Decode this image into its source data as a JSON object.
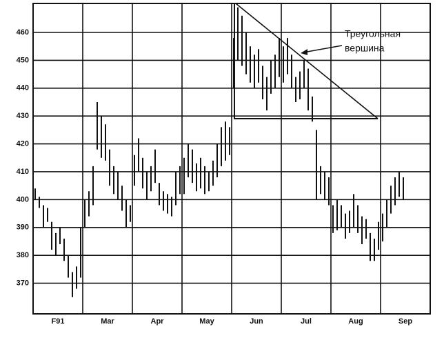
{
  "chart_data": {
    "type": "ohlc",
    "annotation": [
      "Треугольная",
      "вершина"
    ],
    "ylim": [
      359,
      470.4
    ],
    "yticks": [
      370,
      380,
      390,
      400,
      410,
      420,
      430,
      440,
      450,
      460
    ],
    "grid": true,
    "color": "#111111",
    "months": [
      {
        "name": "F91",
        "high": [
          404,
          401,
          398,
          397,
          392,
          388,
          390,
          386,
          380,
          374,
          376,
          390
        ],
        "low": [
          400,
          397,
          390,
          392,
          382,
          380,
          384,
          378,
          372,
          365,
          368,
          372
        ]
      },
      {
        "name": "Mar",
        "high": [
          400,
          403,
          412,
          435,
          430,
          427,
          418,
          412,
          410,
          405,
          400,
          398
        ],
        "low": [
          390,
          394,
          398,
          418,
          415,
          414,
          405,
          402,
          400,
          396,
          390,
          392
        ]
      },
      {
        "name": "Apr",
        "high": [
          416,
          422,
          415,
          410,
          412,
          418,
          406,
          403,
          402,
          401,
          410,
          412
        ],
        "low": [
          405,
          410,
          404,
          400,
          403,
          406,
          398,
          396,
          395,
          394,
          398,
          402
        ]
      },
      {
        "name": "May",
        "high": [
          415,
          420,
          418,
          413,
          415,
          412,
          410,
          414,
          420,
          426,
          428,
          426
        ],
        "low": [
          402,
          408,
          406,
          403,
          404,
          402,
          403,
          405,
          408,
          412,
          414,
          416
        ]
      },
      {
        "name": "Jun",
        "high": [
          458,
          469,
          466,
          460,
          455,
          452,
          454,
          448,
          444,
          450,
          452,
          458
        ],
        "low": [
          440,
          450,
          448,
          445,
          442,
          440,
          442,
          436,
          432,
          438,
          440,
          444
        ]
      },
      {
        "name": "Jul",
        "high": [
          455,
          458,
          452,
          444,
          446,
          450,
          447,
          437,
          425,
          412,
          410,
          408
        ],
        "low": [
          442,
          445,
          440,
          435,
          436,
          440,
          432,
          428,
          400,
          402,
          400,
          398
        ]
      },
      {
        "name": "Aug",
        "high": [
          398,
          400,
          398,
          395,
          396,
          402,
          398,
          394,
          393,
          388,
          386,
          392
        ],
        "low": [
          388,
          389,
          390,
          386,
          388,
          390,
          388,
          384,
          386,
          378,
          378,
          382
        ]
      },
      {
        "name": "Sep",
        "high": [
          395,
          400,
          405,
          408,
          410,
          408
        ],
        "low": [
          385,
          390,
          395,
          398,
          401,
          400
        ]
      }
    ]
  }
}
